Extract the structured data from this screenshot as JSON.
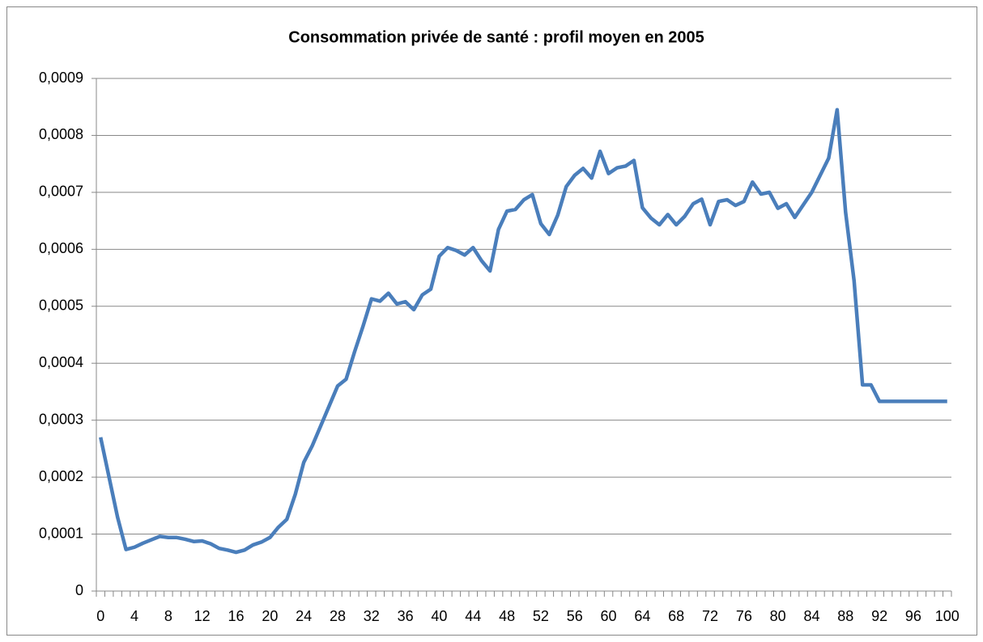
{
  "chart_data": {
    "type": "line",
    "title": "Consommation privée de santé : profil moyen en 2005",
    "categories": [
      "0",
      null,
      null,
      null,
      "4",
      null,
      null,
      null,
      "8",
      null,
      null,
      null,
      "12",
      null,
      null,
      null,
      "16",
      null,
      null,
      null,
      "20",
      null,
      null,
      null,
      "24",
      null,
      null,
      null,
      "28",
      null,
      null,
      null,
      "32",
      null,
      null,
      null,
      "36",
      null,
      null,
      null,
      "40",
      null,
      null,
      null,
      "44",
      null,
      null,
      null,
      "48",
      null,
      null,
      null,
      "52",
      null,
      null,
      null,
      "56",
      null,
      null,
      null,
      "60",
      null,
      null,
      null,
      "64",
      null,
      null,
      null,
      "68",
      null,
      null,
      null,
      "72",
      null,
      null,
      null,
      "76",
      null,
      null,
      null,
      "80",
      null,
      null,
      null,
      "84",
      null,
      null,
      null,
      "88",
      null,
      null,
      null,
      "92",
      null,
      null,
      null,
      "96",
      null,
      null,
      null,
      "100"
    ],
    "series": [
      {
        "name": "Consommation privée de santé",
        "color": "#4a7ebb",
        "values": [
          0.00027,
          0.0002,
          0.00013,
          7.3e-05,
          7.7e-05,
          8.4e-05,
          9e-05,
          9.6e-05,
          9.4e-05,
          9.4e-05,
          9.1e-05,
          8.7e-05,
          8.8e-05,
          8.3e-05,
          7.5e-05,
          7.2e-05,
          6.8e-05,
          7.2e-05,
          8.1e-05,
          8.6e-05,
          9.4e-05,
          0.000112,
          0.000126,
          0.00017,
          0.000226,
          0.000255,
          0.00029,
          0.000325,
          0.00036,
          0.000372,
          0.00042,
          0.000465,
          0.000513,
          0.000509,
          0.000523,
          0.000504,
          0.000508,
          0.000494,
          0.00052,
          0.00053,
          0.000588,
          0.000603,
          0.000598,
          0.00059,
          0.000603,
          0.00058,
          0.000562,
          0.000635,
          0.000667,
          0.00067,
          0.000687,
          0.000696,
          0.000645,
          0.000626,
          0.00066,
          0.00071,
          0.00073,
          0.000742,
          0.000725,
          0.000772,
          0.000733,
          0.000743,
          0.000746,
          0.000756,
          0.000673,
          0.000655,
          0.000643,
          0.000661,
          0.000643,
          0.000658,
          0.00068,
          0.000688,
          0.000643,
          0.000684,
          0.000687,
          0.000677,
          0.000684,
          0.000718,
          0.000697,
          0.0007,
          0.000672,
          0.00068,
          0.000656,
          0.000678,
          0.0007,
          0.00073,
          0.00076,
          0.000845,
          0.000665,
          0.000545,
          0.000362,
          0.000362,
          0.000333,
          0.000333,
          0.000333,
          0.000333,
          0.000333,
          0.000333,
          0.000333,
          0.000333,
          0.000333
        ]
      }
    ],
    "ylim": [
      0,
      0.0009
    ],
    "yticks": [
      0,
      {
        "value": 0.0001,
        "label": "0,0001"
      },
      {
        "value": 0.0002,
        "label": "0,0002"
      },
      {
        "value": 0.0003,
        "label": "0,0003"
      },
      {
        "value": 0.0004,
        "label": "0,0004"
      },
      {
        "value": 0.0005,
        "label": "0,0005"
      },
      {
        "value": 0.0006,
        "label": "0,0006"
      },
      {
        "value": 0.0007,
        "label": "0,0007"
      },
      {
        "value": 0.0008,
        "label": "0,0008"
      },
      {
        "value": 0.0009,
        "label": "0,0009"
      }
    ],
    "grid": true
  }
}
